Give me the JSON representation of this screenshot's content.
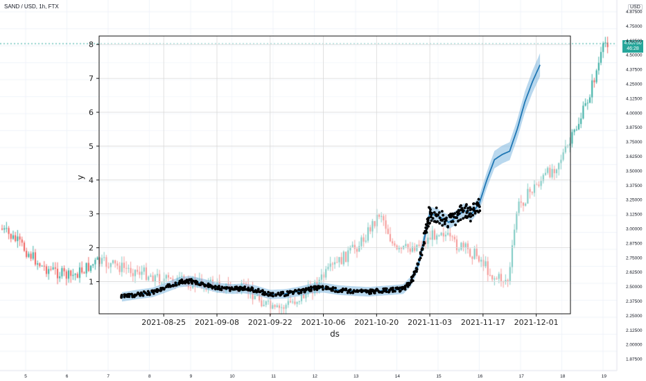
{
  "tv": {
    "title": "SAND / USD, 1h, FTX",
    "currency": "USD",
    "last_price": "4.60750",
    "countdown": "46:28",
    "price_ticks": [
      "4.87500",
      "4.75000",
      "4.62500",
      "4.50000",
      "4.37500",
      "4.25000",
      "4.12500",
      "4.00000",
      "3.87500",
      "3.75000",
      "3.62500",
      "3.50000",
      "3.37500",
      "3.25000",
      "3.12500",
      "3.00000",
      "2.87500",
      "2.75000",
      "2.62500",
      "2.50000",
      "2.37500",
      "2.25000",
      "2.12500",
      "2.00000",
      "1.87500"
    ],
    "day_ticks": [
      "5",
      "6",
      "7",
      "8",
      "9",
      "10",
      "11",
      "12",
      "13",
      "14",
      "15",
      "16",
      "17",
      "18",
      "19"
    ]
  },
  "chart_data": {
    "type": "line",
    "xlabel": "ds",
    "ylabel": "y",
    "x_ticks": [
      "2021-08-25",
      "2021-09-08",
      "2021-09-22",
      "2021-10-06",
      "2021-10-20",
      "2021-11-03",
      "2021-11-17",
      "2021-12-01"
    ],
    "y_ticks": [
      "1",
      "2",
      "3",
      "4",
      "5",
      "6",
      "7",
      "8"
    ],
    "ylim": [
      0.05,
      8.25
    ],
    "grid": true,
    "series": [
      {
        "values": [
          {
            "x": "2021-08-14",
            "y": 0.55
          },
          {
            "x": "2021-08-18",
            "y": 0.62
          },
          {
            "x": "2021-08-22",
            "y": 0.68
          },
          {
            "x": "2021-08-25",
            "y": 0.8
          },
          {
            "x": "2021-08-29",
            "y": 0.98
          },
          {
            "x": "2021-09-01",
            "y": 1.02
          },
          {
            "x": "2021-09-05",
            "y": 0.92
          },
          {
            "x": "2021-09-08",
            "y": 0.82
          },
          {
            "x": "2021-09-12",
            "y": 0.78
          },
          {
            "x": "2021-09-15",
            "y": 0.8
          },
          {
            "x": "2021-09-18",
            "y": 0.75
          },
          {
            "x": "2021-09-22",
            "y": 0.62
          },
          {
            "x": "2021-09-26",
            "y": 0.64
          },
          {
            "x": "2021-09-30",
            "y": 0.72
          },
          {
            "x": "2021-10-03",
            "y": 0.8
          },
          {
            "x": "2021-10-06",
            "y": 0.82
          },
          {
            "x": "2021-10-10",
            "y": 0.75
          },
          {
            "x": "2021-10-14",
            "y": 0.72
          },
          {
            "x": "2021-10-18",
            "y": 0.7
          },
          {
            "x": "2021-10-20",
            "y": 0.72
          },
          {
            "x": "2021-10-24",
            "y": 0.75
          },
          {
            "x": "2021-10-27",
            "y": 0.78
          },
          {
            "x": "2021-10-29",
            "y": 1.0
          },
          {
            "x": "2021-10-31",
            "y": 1.5
          },
          {
            "x": "2021-11-02",
            "y": 2.5
          },
          {
            "x": "2021-11-03",
            "y": 3.0
          },
          {
            "x": "2021-11-05",
            "y": 2.95
          },
          {
            "x": "2021-11-08",
            "y": 2.75
          },
          {
            "x": "2021-11-10",
            "y": 2.9
          },
          {
            "x": "2021-11-12",
            "y": 3.1
          },
          {
            "x": "2021-11-14",
            "y": 3.0
          },
          {
            "x": "2021-11-16",
            "y": 3.3
          },
          {
            "x": "2021-11-18",
            "y": 4.0
          },
          {
            "x": "2021-11-20",
            "y": 4.6
          },
          {
            "x": "2021-11-22",
            "y": 4.75
          },
          {
            "x": "2021-11-24",
            "y": 4.85
          },
          {
            "x": "2021-11-26",
            "y": 5.5
          },
          {
            "x": "2021-11-28",
            "y": 6.3
          },
          {
            "x": "2021-11-30",
            "y": 6.9
          },
          {
            "x": "2021-12-02",
            "y": 7.4
          }
        ]
      }
    ]
  }
}
